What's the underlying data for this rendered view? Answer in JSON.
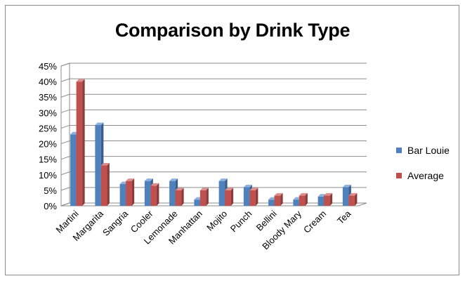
{
  "chart_data": {
    "type": "bar",
    "title": "Comparison by Drink Type",
    "categories": [
      "Martini",
      "Margarita",
      "Sangria",
      "Cooler",
      "Lemonade",
      "Manhattan",
      "Mojito",
      "Punch",
      "Bellini",
      "Bloody Mary",
      "Cream",
      "Tea"
    ],
    "series": [
      {
        "name": "Bar Louie",
        "color": "#4f81bd",
        "side": "#395f8e",
        "top": "#8fb1dd",
        "values": [
          0.23,
          0.26,
          0.07,
          0.08,
          0.08,
          0.02,
          0.08,
          0.06,
          0.02,
          0.02,
          0.03,
          0.06
        ]
      },
      {
        "name": "Average",
        "color": "#c0504d",
        "side": "#8e3a38",
        "top": "#dd8f8d",
        "values": [
          0.4,
          0.13,
          0.08,
          0.065,
          0.05,
          0.05,
          0.05,
          0.05,
          0.033,
          0.033,
          0.033,
          0.033
        ]
      }
    ],
    "y_ticks": [
      "0%",
      "5%",
      "10%",
      "15%",
      "20%",
      "25%",
      "30%",
      "35%",
      "40%",
      "45%"
    ],
    "ylim": [
      0,
      0.45
    ],
    "grid": true,
    "legend": "right",
    "style": "3d-clustered-column"
  }
}
